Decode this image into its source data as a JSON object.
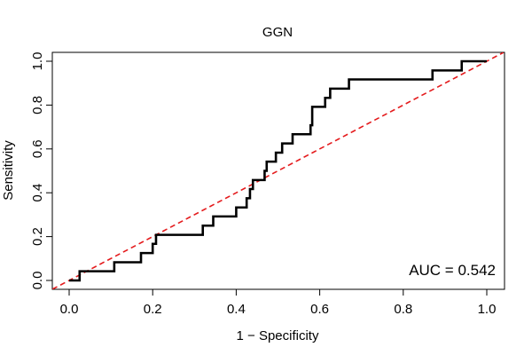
{
  "chart_data": {
    "type": "line",
    "title": "GGN",
    "xlabel": "1 − Specificity",
    "ylabel": "Sensitivity",
    "xlim": [
      0.0,
      1.0
    ],
    "ylim": [
      0.0,
      1.0
    ],
    "x_ticks": [
      "0.0",
      "0.2",
      "0.4",
      "0.6",
      "0.8",
      "1.0"
    ],
    "y_ticks": [
      "0.0",
      "0.2",
      "0.4",
      "0.6",
      "0.8",
      "1.0"
    ],
    "grid": false,
    "legend": "none",
    "annotation": "AUC = 0.542",
    "series": [
      {
        "color": "#000000",
        "style": "solid",
        "points": [
          [
            0.0,
            0.0
          ],
          [
            0.025,
            0.0
          ],
          [
            0.025,
            0.042
          ],
          [
            0.108,
            0.042
          ],
          [
            0.108,
            0.083
          ],
          [
            0.172,
            0.083
          ],
          [
            0.172,
            0.125
          ],
          [
            0.2,
            0.125
          ],
          [
            0.2,
            0.167
          ],
          [
            0.208,
            0.167
          ],
          [
            0.208,
            0.208
          ],
          [
            0.32,
            0.208
          ],
          [
            0.32,
            0.25
          ],
          [
            0.345,
            0.25
          ],
          [
            0.345,
            0.292
          ],
          [
            0.4,
            0.292
          ],
          [
            0.4,
            0.333
          ],
          [
            0.425,
            0.333
          ],
          [
            0.425,
            0.375
          ],
          [
            0.433,
            0.375
          ],
          [
            0.433,
            0.417
          ],
          [
            0.44,
            0.417
          ],
          [
            0.44,
            0.458
          ],
          [
            0.468,
            0.458
          ],
          [
            0.468,
            0.5
          ],
          [
            0.473,
            0.5
          ],
          [
            0.473,
            0.542
          ],
          [
            0.495,
            0.542
          ],
          [
            0.495,
            0.583
          ],
          [
            0.51,
            0.583
          ],
          [
            0.51,
            0.625
          ],
          [
            0.535,
            0.625
          ],
          [
            0.535,
            0.667
          ],
          [
            0.578,
            0.667
          ],
          [
            0.578,
            0.708
          ],
          [
            0.582,
            0.708
          ],
          [
            0.582,
            0.792
          ],
          [
            0.613,
            0.792
          ],
          [
            0.613,
            0.833
          ],
          [
            0.625,
            0.833
          ],
          [
            0.625,
            0.875
          ],
          [
            0.67,
            0.875
          ],
          [
            0.67,
            0.917
          ],
          [
            0.87,
            0.917
          ],
          [
            0.87,
            0.958
          ],
          [
            0.94,
            0.958
          ],
          [
            0.94,
            1.0
          ],
          [
            1.0,
            1.0
          ]
        ]
      },
      {
        "color": "#e41a1c",
        "style": "dashed",
        "points": [
          [
            -0.04,
            -0.04
          ],
          [
            1.04,
            1.04
          ]
        ]
      }
    ]
  }
}
